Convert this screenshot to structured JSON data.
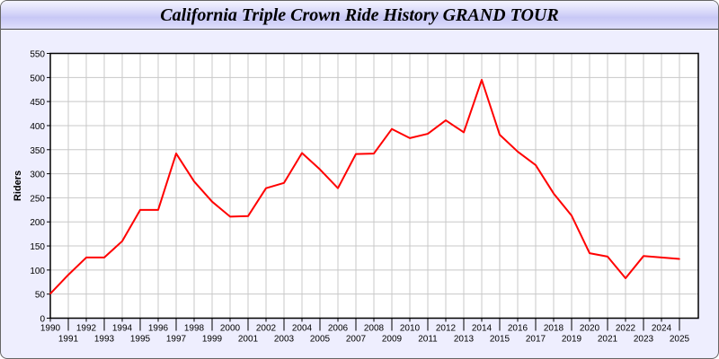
{
  "chart_data": {
    "type": "line",
    "title": "California Triple Crown Ride History GRAND TOUR",
    "xlabel": "",
    "ylabel": "Riders",
    "ylim": [
      0,
      550
    ],
    "yticks": [
      0,
      50,
      100,
      150,
      200,
      250,
      300,
      350,
      400,
      450,
      500,
      550
    ],
    "grid": true,
    "x": [
      "1990",
      "1991",
      "1992",
      "1993",
      "1994",
      "1995",
      "1996",
      "1997",
      "1998",
      "1999",
      "2000",
      "2001",
      "2002",
      "2003",
      "2004",
      "2005",
      "2006",
      "2007",
      "2008",
      "2009",
      "2010",
      "2011",
      "2012",
      "2013",
      "2014",
      "2015",
      "2016",
      "2017",
      "2018",
      "2019",
      "2020",
      "2021",
      "2022",
      "2023",
      "2024",
      "2025"
    ],
    "series": [
      {
        "color": "#ff0000",
        "values": [
          51,
          90,
          126,
          126,
          160,
          225,
          225,
          342,
          284,
          242,
          211,
          212,
          270,
          281,
          343,
          309,
          270,
          341,
          342,
          393,
          374,
          383,
          411,
          386,
          495,
          381,
          346,
          318,
          259,
          213,
          135,
          128,
          83,
          129,
          126,
          123
        ]
      }
    ]
  }
}
